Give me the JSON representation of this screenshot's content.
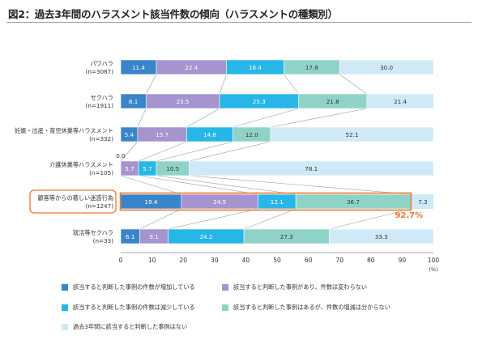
{
  "title": "図2：過去3年間のハラスメント該当件数の傾向（ハラスメントの種類別）",
  "colors": {
    "increase": "#3a84c9",
    "unchanged": "#a594cf",
    "decrease": "#27b6e8",
    "unknown": "#8fd3c7",
    "none": "#cfe9f7",
    "highlight": "#e8792f"
  },
  "chart_data": {
    "type": "bar",
    "orientation": "horizontal",
    "stacked": true,
    "xlim": [
      0,
      100
    ],
    "x_ticks": [
      "0",
      "10",
      "20",
      "30",
      "40",
      "50",
      "60",
      "70",
      "80",
      "90",
      "100"
    ],
    "x_unit": "(%)",
    "categories": [
      {
        "label": "パワハラ",
        "n": "(n=3087)"
      },
      {
        "label": "セクハラ",
        "n": "(n=1911)"
      },
      {
        "label": "妊娠・出産・育児休業等ハラスメント",
        "n": "(n=332)"
      },
      {
        "label": "介護休業等ハラスメント",
        "n": "(n=105)"
      },
      {
        "label": "顧客等からの著しい迷惑行為",
        "n": "(n=1247)"
      },
      {
        "label": "就活等セクハラ",
        "n": "(n=33)"
      }
    ],
    "series": [
      {
        "name": "該当すると判断した事例の件数が増加している",
        "color_key": "increase",
        "values": [
          11.4,
          8.1,
          5.4,
          0.0,
          19.4,
          6.1
        ]
      },
      {
        "name": "該当すると判断した事例があり、件数は変わらない",
        "color_key": "unchanged",
        "values": [
          22.4,
          23.5,
          15.7,
          5.7,
          24.5,
          9.1
        ]
      },
      {
        "name": "該当すると判断した事例の件数は減少している",
        "color_key": "decrease",
        "values": [
          18.4,
          25.3,
          14.8,
          5.7,
          12.1,
          24.2
        ]
      },
      {
        "name": "該当すると判断した事例はあるが、件数の増減は分からない",
        "color_key": "unknown",
        "values": [
          17.8,
          21.8,
          12.0,
          10.5,
          36.7,
          27.3
        ]
      },
      {
        "name": "過去3年間に該当すると判断した事例はない",
        "color_key": "none",
        "values": [
          30.0,
          21.4,
          52.1,
          78.1,
          7.3,
          33.3
        ]
      }
    ],
    "highlight": {
      "category_index": 4,
      "cumulative_label": "92.7%"
    },
    "legend_placement": "bottom"
  }
}
